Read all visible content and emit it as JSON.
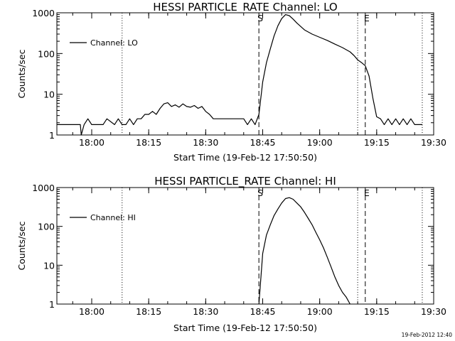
{
  "chart_data": [
    {
      "type": "line",
      "title": "HESSI PARTICLE_RATE Channel: LO",
      "xlabel": "Start Time (19-Feb-12 17:50:50)",
      "ylabel": "Counts/sec",
      "y_scale": "log",
      "ylim": [
        1,
        1000
      ],
      "xlim": [
        "17:50:50",
        "19:30"
      ],
      "x_ticks": [
        "18:00",
        "18:15",
        "18:30",
        "18:45",
        "19:00",
        "19:15",
        "19:30"
      ],
      "y_ticks": [
        "1",
        "10",
        "100",
        "1000"
      ],
      "legend": "top-left",
      "series": [
        {
          "name": "Channel: LO",
          "x": [
            "17:50:50",
            "17:55",
            "17:57",
            "17:57:15",
            "17:58",
            "17:59",
            "18:00",
            "18:01",
            "18:02",
            "18:03",
            "18:04",
            "18:06",
            "18:07",
            "18:08",
            "18:09",
            "18:10",
            "18:11",
            "18:12",
            "18:13",
            "18:14",
            "18:15",
            "18:16",
            "18:17",
            "18:18",
            "18:19",
            "18:20",
            "18:21",
            "18:22",
            "18:23",
            "18:24",
            "18:25",
            "18:26",
            "18:27",
            "18:28",
            "18:29",
            "18:30",
            "18:31",
            "18:32",
            "18:33",
            "18:34",
            "18:35",
            "18:37",
            "18:39",
            "18:40",
            "18:41",
            "18:42",
            "18:43",
            "18:44",
            "18:45",
            "18:46",
            "18:47",
            "18:48",
            "18:49",
            "18:50",
            "18:51",
            "18:52",
            "18:53",
            "18:54",
            "18:56",
            "18:58",
            "19:00",
            "19:02",
            "19:04",
            "19:06",
            "19:08",
            "19:09",
            "19:10",
            "19:11",
            "19:12",
            "19:13",
            "19:14",
            "19:15",
            "19:16",
            "19:17",
            "19:18",
            "19:19",
            "19:20",
            "19:21",
            "19:22",
            "19:23",
            "19:24",
            "19:25",
            "19:26",
            "19:27"
          ],
          "y": [
            1.8,
            1.8,
            1.8,
            1.0,
            1.8,
            2.5,
            1.8,
            1.8,
            1.8,
            1.8,
            2.5,
            1.8,
            2.5,
            1.8,
            1.8,
            2.5,
            1.8,
            2.5,
            2.5,
            3.2,
            3.2,
            3.8,
            3.2,
            4.5,
            5.8,
            6.2,
            5.0,
            5.5,
            4.8,
            5.8,
            5.0,
            4.8,
            5.3,
            4.5,
            5.0,
            3.8,
            3.2,
            2.5,
            2.5,
            2.5,
            2.5,
            2.5,
            2.5,
            2.5,
            1.8,
            2.5,
            1.8,
            3.2,
            20,
            60,
            130,
            270,
            480,
            720,
            900,
            850,
            700,
            560,
            380,
            300,
            250,
            210,
            170,
            140,
            110,
            90,
            70,
            60,
            50,
            28,
            8,
            2.8,
            2.5,
            1.8,
            2.5,
            1.8,
            2.5,
            1.8,
            2.5,
            1.8,
            2.5,
            1.8,
            1.8,
            1.8
          ]
        }
      ],
      "annotations": [
        {
          "label": "S",
          "x": "18:44",
          "style": "dashed"
        },
        {
          "label": "E",
          "x": "19:12",
          "style": "dashed"
        },
        {
          "label": "",
          "x": "18:08",
          "style": "dotted"
        },
        {
          "label": "",
          "x": "19:10",
          "style": "dotted"
        },
        {
          "label": "",
          "x": "19:27",
          "style": "dotted"
        }
      ]
    },
    {
      "type": "line",
      "title": "HESSI PARTICLE_RATE Channel: HI",
      "xlabel": "Start Time (19-Feb-12 17:50:50)",
      "ylabel": "Counts/sec",
      "y_scale": "log",
      "ylim": [
        1,
        1000
      ],
      "xlim": [
        "17:50:50",
        "19:30"
      ],
      "x_ticks": [
        "18:00",
        "18:15",
        "18:30",
        "18:45",
        "19:00",
        "19:15",
        "19:30"
      ],
      "y_ticks": [
        "1",
        "10",
        "100",
        "1000"
      ],
      "legend": "top-left",
      "series": [
        {
          "name": "Channel: HI",
          "x": [
            "18:44",
            "18:45",
            "18:46",
            "18:47",
            "18:48",
            "18:49",
            "18:50",
            "18:51",
            "18:52",
            "18:53",
            "18:54",
            "18:55",
            "18:56",
            "18:57",
            "18:58",
            "18:59",
            "19:00",
            "19:01",
            "19:02",
            "19:03",
            "19:04",
            "19:05",
            "19:06",
            "19:07",
            "19:08"
          ],
          "y": [
            1.0,
            20,
            60,
            110,
            190,
            280,
            400,
            520,
            550,
            500,
            400,
            320,
            230,
            160,
            110,
            70,
            45,
            28,
            16,
            9,
            5,
            3,
            2,
            1.5,
            1.0
          ]
        }
      ],
      "annotations": [
        {
          "label": "S",
          "x": "18:44",
          "style": "dashed"
        },
        {
          "label": "E",
          "x": "19:12",
          "style": "dashed"
        },
        {
          "label": "",
          "x": "18:08",
          "style": "dotted"
        },
        {
          "label": "",
          "x": "19:10",
          "style": "dotted"
        },
        {
          "label": "",
          "x": "19:27",
          "style": "dotted"
        }
      ]
    }
  ],
  "footer": {
    "timestamp": "19-Feb-2012 12:40"
  }
}
